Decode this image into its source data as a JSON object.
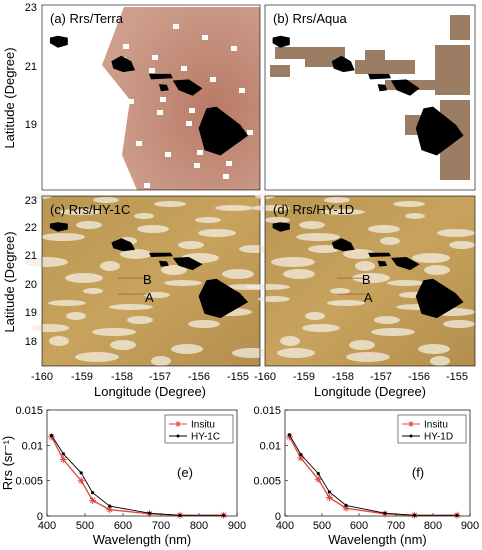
{
  "maps": {
    "panels": [
      {
        "id": "a",
        "label": "(a) Rrs/Terra",
        "bg": "terra"
      },
      {
        "id": "b",
        "label": "(b) Rrs/Aqua",
        "bg": "aqua"
      },
      {
        "id": "c",
        "label": "(c) Rrs/HY-1C",
        "bg": "hy"
      },
      {
        "id": "d",
        "label": "(d) Rrs/HY-1D",
        "bg": "hy"
      }
    ],
    "ylabel": "Latitude (Degree)",
    "xlabel": "Longitude (Degree)",
    "top_lat_ticks": [
      "23",
      "21",
      "19"
    ],
    "bottom_lat_ticks": [
      "23",
      "22",
      "21",
      "20",
      "19",
      "18"
    ],
    "lon_ticks": [
      "-160",
      "-159",
      "-158",
      "-157",
      "-156",
      "-155"
    ],
    "marker_a": "A",
    "marker_b": "B"
  },
  "chart_data": [
    {
      "type": "line",
      "panel_label": "(e)",
      "xlabel": "Wavelength (nm)",
      "ylabel": "Rrs (sr⁻¹)",
      "xlim": [
        400,
        900
      ],
      "ylim": [
        0,
        0.015
      ],
      "xticks": [
        "400",
        "500",
        "600",
        "700",
        "800",
        "900"
      ],
      "yticks": [
        "0",
        "0.005",
        "0.01",
        "0.015"
      ],
      "series": [
        {
          "name": "Insitu",
          "color": "#e0453a",
          "marker": "star",
          "x": [
            412,
            443,
            490,
            520,
            565,
            670,
            750,
            865
          ],
          "y": [
            0.0112,
            0.008,
            0.005,
            0.0022,
            0.0009,
            0.0003,
            0.0001,
            0.0001
          ]
        },
        {
          "name": "HY-1C",
          "color": "#000000",
          "marker": "dot",
          "x": [
            412,
            443,
            490,
            520,
            565,
            670,
            750,
            865
          ],
          "y": [
            0.0114,
            0.0088,
            0.0061,
            0.0033,
            0.0014,
            0.0004,
            0.0001,
            0.0001
          ]
        }
      ]
    },
    {
      "type": "line",
      "panel_label": "(f)",
      "xlabel": "Wavelength (nm)",
      "ylabel": "",
      "xlim": [
        400,
        900
      ],
      "ylim": [
        0,
        0.015
      ],
      "xticks": [
        "400",
        "500",
        "600",
        "700",
        "800",
        "900"
      ],
      "yticks": [
        "0",
        "0.005",
        "0.01",
        "0.015"
      ],
      "series": [
        {
          "name": "Insitu",
          "color": "#e0453a",
          "marker": "star",
          "x": [
            412,
            443,
            490,
            520,
            565,
            670,
            750,
            865
          ],
          "y": [
            0.0112,
            0.0082,
            0.0052,
            0.0026,
            0.0011,
            0.0003,
            0.0001,
            0.0001
          ]
        },
        {
          "name": "HY-1D",
          "color": "#000000",
          "marker": "dot",
          "x": [
            412,
            443,
            490,
            520,
            565,
            670,
            750,
            865
          ],
          "y": [
            0.0115,
            0.0087,
            0.006,
            0.0034,
            0.0015,
            0.0004,
            0.0001,
            0.0001
          ]
        }
      ]
    }
  ]
}
